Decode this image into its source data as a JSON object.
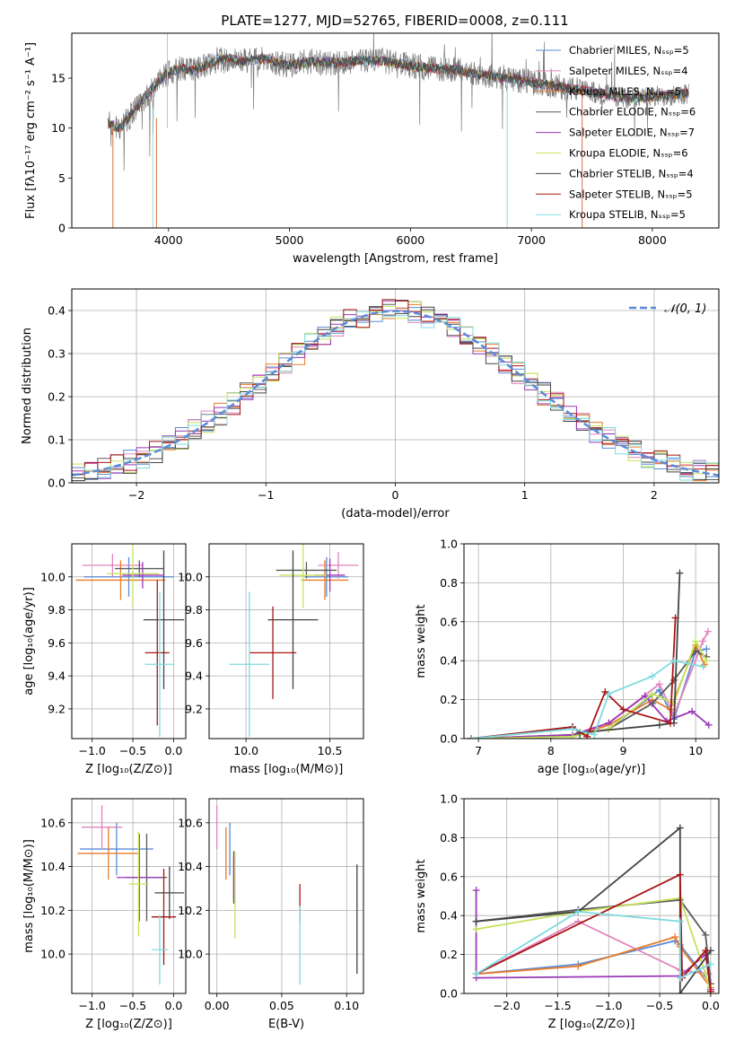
{
  "colors": [
    "#5b8bd6",
    "#e283bd",
    "#e87d2a",
    "#5a5a5a",
    "#9a38b8",
    "#c4e35a",
    "#444444",
    "#a81515",
    "#7fdbe0"
  ],
  "chart_data": [
    {
      "id": "spectrum",
      "type": "line",
      "title": "PLATE=1277, MJD=52765, FIBERID=0008, z=0.111",
      "xlabel": "wavelength [Angstrom, rest frame]",
      "ylabel": "Flux [fλ10⁻¹⁷ erg cm⁻² s⁻¹ A⁻¹]",
      "xlim": [
        3200,
        8550
      ],
      "ylim": [
        0,
        19.5
      ],
      "xticks": [
        4000,
        5000,
        6000,
        7000,
        8000
      ],
      "yticks": [
        0,
        5,
        10,
        15
      ],
      "legend_position": "top-right",
      "grid": false,
      "legend": [
        "Chabrier MILES, Nₛₛₚ=5",
        "Salpeter MILES, Nₛₛₚ=4",
        "Kroupa MILES, Nₛₛₚ=5",
        "Chabrier ELODIE, Nₛₛₚ=6",
        "Salpeter ELODIE, Nₛₛₚ=7",
        "Kroupa ELODIE, Nₛₛₚ=6",
        "Chabrier STELIB, Nₛₛₚ=4",
        "Salpeter STELIB, Nₛₛₚ=5",
        "Kroupa STELIB, Nₛₛₚ=5"
      ],
      "continuum": {
        "x": [
          3500,
          3600,
          3700,
          3800,
          3900,
          4000,
          4100,
          4200,
          4300,
          4400,
          4500,
          4600,
          4700,
          4800,
          4900,
          5000,
          5200,
          5400,
          5600,
          5800,
          6000,
          6200,
          6400,
          6600,
          6800,
          7000,
          7200,
          7400,
          7600,
          7800,
          8000,
          8200,
          8300
        ],
        "y": [
          10.5,
          10.0,
          11.5,
          13.0,
          14.5,
          15.5,
          16.0,
          15.8,
          16.2,
          16.8,
          17.0,
          16.6,
          16.8,
          17.0,
          16.5,
          16.3,
          16.7,
          16.5,
          16.8,
          16.7,
          16.2,
          16.0,
          15.8,
          15.3,
          15.0,
          14.6,
          14.2,
          13.8,
          13.4,
          13.0,
          13.1,
          13.4,
          13.5
        ]
      }
    },
    {
      "id": "residuals",
      "type": "histogram",
      "xlabel": "(data-model)/error",
      "ylabel": "Normed distribution",
      "xlim": [
        -2.5,
        2.5
      ],
      "ylim": [
        0,
        0.45
      ],
      "xticks": [
        -2,
        -1,
        0,
        1,
        2
      ],
      "yticks": [
        0.0,
        0.1,
        0.2,
        0.3,
        0.4
      ],
      "grid": true,
      "legend": [
        "𝒩(0, 1)"
      ],
      "legend_position": "top-right",
      "bin_width": 0.1
    },
    {
      "id": "age-vs-Z",
      "type": "scatter",
      "xlabel": "Z [log₁₀(Z/Z⊙)]",
      "ylabel": "age  [log₁₀(age/yr)]",
      "xlim": [
        -1.25,
        0.15
      ],
      "ylim": [
        9.02,
        10.2
      ],
      "xticks": [
        -1.0,
        -0.5,
        0.0
      ],
      "yticks": [
        9.2,
        9.4,
        9.6,
        9.8,
        10.0
      ],
      "grid": true,
      "points": [
        {
          "x": -0.55,
          "y": 10.0,
          "xerr": 0.55,
          "yerr": 0.12
        },
        {
          "x": -0.75,
          "y": 10.07,
          "xerr": 0.37,
          "yerr": 0.07
        },
        {
          "x": -0.65,
          "y": 9.98,
          "xerr": 0.55,
          "yerr": 0.12
        },
        {
          "x": -0.42,
          "y": 10.05,
          "xerr": 0.3,
          "yerr": 0.05
        },
        {
          "x": -0.38,
          "y": 10.01,
          "xerr": 0.25,
          "yerr": 0.08
        },
        {
          "x": -0.5,
          "y": 10.02,
          "xerr": 0.32,
          "yerr": 0.2
        },
        {
          "x": -0.12,
          "y": 9.74,
          "xerr": 0.25,
          "yerr": 0.42
        },
        {
          "x": -0.2,
          "y": 9.54,
          "xerr": 0.15,
          "yerr": 0.44
        },
        {
          "x": -0.17,
          "y": 9.47,
          "xerr": 0.18,
          "yerr": 0.44
        }
      ]
    },
    {
      "id": "age-vs-mass",
      "type": "scatter",
      "xlabel": "mass [log₁₀(M/M⊙)]",
      "ylabel": "",
      "xlim": [
        9.78,
        10.7
      ],
      "ylim": [
        9.02,
        10.2
      ],
      "xticks": [
        10.0,
        10.5
      ],
      "yticks": [
        9.2,
        9.4,
        9.6,
        9.8,
        10.0
      ],
      "grid": true,
      "points": [
        {
          "x": 10.48,
          "y": 10.0,
          "xerr": 0.13,
          "yerr": 0.12
        },
        {
          "x": 10.55,
          "y": 10.07,
          "xerr": 0.12,
          "yerr": 0.08
        },
        {
          "x": 10.47,
          "y": 9.98,
          "xerr": 0.14,
          "yerr": 0.12
        },
        {
          "x": 10.36,
          "y": 10.04,
          "xerr": 0.18,
          "yerr": 0.05
        },
        {
          "x": 10.5,
          "y": 10.01,
          "xerr": 0.09,
          "yerr": 0.1
        },
        {
          "x": 10.34,
          "y": 10.01,
          "xerr": 0.14,
          "yerr": 0.2
        },
        {
          "x": 10.28,
          "y": 9.74,
          "xerr": 0.15,
          "yerr": 0.42
        },
        {
          "x": 10.16,
          "y": 9.54,
          "xerr": 0.14,
          "yerr": 0.28
        },
        {
          "x": 10.02,
          "y": 9.47,
          "xerr": 0.12,
          "yerr": 0.44
        }
      ]
    },
    {
      "id": "massweight-vs-age",
      "type": "line",
      "xlabel": "age  [log₁₀(age/yr)]",
      "ylabel": "mass weight",
      "xlim": [
        6.8,
        10.32
      ],
      "ylim": [
        0,
        1.0
      ],
      "xticks": [
        7,
        8,
        9,
        10
      ],
      "yticks": [
        0.0,
        0.2,
        0.4,
        0.6,
        0.8,
        1.0
      ],
      "grid": true,
      "series": [
        {
          "x": [
            6.9,
            8.3,
            8.8,
            9.5,
            9.7,
            10.0,
            10.15
          ],
          "y": [
            0.0,
            0.01,
            0.05,
            0.25,
            0.1,
            0.45,
            0.46
          ]
        },
        {
          "x": [
            6.9,
            8.3,
            8.8,
            9.5,
            9.7,
            10.1,
            10.17
          ],
          "y": [
            0.0,
            0.01,
            0.08,
            0.28,
            0.12,
            0.5,
            0.55
          ]
        },
        {
          "x": [
            6.9,
            8.4,
            8.8,
            9.4,
            9.65,
            10.0,
            10.12
          ],
          "y": [
            0.0,
            0.02,
            0.07,
            0.2,
            0.15,
            0.48,
            0.38
          ]
        },
        {
          "x": [
            6.9,
            8.4,
            8.8,
            9.4,
            9.7,
            10.0,
            10.15
          ],
          "y": [
            0.0,
            0.02,
            0.05,
            0.18,
            0.3,
            0.45,
            0.42
          ]
        },
        {
          "x": [
            6.9,
            8.3,
            8.8,
            9.3,
            9.6,
            9.95,
            10.18
          ],
          "y": [
            0.0,
            0.02,
            0.08,
            0.22,
            0.09,
            0.14,
            0.07
          ]
        },
        {
          "x": [
            6.9,
            8.3,
            8.8,
            9.4,
            9.7,
            10.0,
            10.15
          ],
          "y": [
            0.0,
            0.01,
            0.05,
            0.23,
            0.18,
            0.5,
            0.4
          ]
        },
        {
          "x": [
            6.9,
            8.3,
            8.4,
            9.5,
            9.7,
            9.78
          ],
          "y": [
            0.0,
            0.06,
            0.03,
            0.07,
            0.08,
            0.85
          ]
        },
        {
          "x": [
            6.9,
            8.3,
            8.5,
            8.75,
            9.0,
            9.65,
            9.72
          ],
          "y": [
            0.0,
            0.06,
            0.01,
            0.24,
            0.15,
            0.08,
            0.62
          ]
        },
        {
          "x": [
            6.9,
            8.3,
            8.6,
            8.8,
            9.4,
            9.7,
            10.1
          ],
          "y": [
            0.0,
            0.05,
            0.02,
            0.23,
            0.32,
            0.4,
            0.37
          ]
        }
      ]
    },
    {
      "id": "mass-vs-Z",
      "type": "scatter",
      "xlabel": "Z [log₁₀(Z/Z⊙)]",
      "ylabel": "mass [log₁₀(M/M⊙)]",
      "xlim": [
        -1.25,
        0.15
      ],
      "ylim": [
        9.82,
        10.71
      ],
      "xticks": [
        -1.0,
        -0.5,
        0.0
      ],
      "yticks": [
        10.0,
        10.2,
        10.4,
        10.6
      ],
      "grid": true,
      "points": [
        {
          "x": -0.7,
          "y": 10.48,
          "xerr": 0.45,
          "yerr": 0.12
        },
        {
          "x": -0.88,
          "y": 10.58,
          "xerr": 0.25,
          "yerr": 0.1
        },
        {
          "x": -0.8,
          "y": 10.46,
          "xerr": 0.38,
          "yerr": 0.12
        },
        {
          "x": -0.33,
          "y": 10.35,
          "xerr": 0.25,
          "yerr": 0.2
        },
        {
          "x": -0.42,
          "y": 10.35,
          "xerr": 0.28,
          "yerr": 0.2
        },
        {
          "x": -0.43,
          "y": 10.32,
          "xerr": 0.12,
          "yerr": 0.24
        },
        {
          "x": -0.05,
          "y": 10.28,
          "xerr": 0.18,
          "yerr": 0.12
        },
        {
          "x": -0.12,
          "y": 10.17,
          "xerr": 0.15,
          "yerr": 0.22
        },
        {
          "x": -0.17,
          "y": 10.02,
          "xerr": 0.1,
          "yerr": 0.16
        }
      ]
    },
    {
      "id": "mass-vs-EBV",
      "type": "scatter",
      "xlabel": "E(B-V)",
      "ylabel": "",
      "xlim": [
        -0.006,
        0.113
      ],
      "ylim": [
        9.82,
        10.71
      ],
      "xticks": [
        0.0,
        0.05,
        0.1
      ],
      "yticks": [
        10.0,
        10.2,
        10.4,
        10.6
      ],
      "grid": true,
      "points": [
        {
          "x": 0.01,
          "y": 10.48,
          "xerr": 0.0,
          "yerr": 0.12
        },
        {
          "x": 0.0,
          "y": 10.58,
          "xerr": 0.0,
          "yerr": 0.1
        },
        {
          "x": 0.007,
          "y": 10.46,
          "xerr": 0.0,
          "yerr": 0.12
        },
        {
          "x": 0.013,
          "y": 10.35,
          "xerr": 0.0,
          "yerr": 0.12
        },
        {
          "x": 0.013,
          "y": 10.35,
          "xerr": 0.0,
          "yerr": 0.1
        },
        {
          "x": 0.014,
          "y": 10.27,
          "xerr": 0.0,
          "yerr": 0.2
        },
        {
          "x": 0.108,
          "y": 10.16,
          "xerr": 0.0,
          "yerr": 0.25
        },
        {
          "x": 0.064,
          "y": 10.23,
          "xerr": 0.0,
          "yerr": 0.09
        },
        {
          "x": 0.064,
          "y": 10.04,
          "xerr": 0.0,
          "yerr": 0.18
        }
      ]
    },
    {
      "id": "massweight-vs-Z",
      "type": "line",
      "xlabel": "Z [log₁₀(Z/Z⊙)]",
      "ylabel": "mass weight",
      "xlim": [
        -2.42,
        0.08
      ],
      "ylim": [
        0,
        1.0
      ],
      "xticks": [
        -2.0,
        -1.5,
        -1.0,
        -0.5,
        0.0
      ],
      "yticks": [
        0.0,
        0.2,
        0.4,
        0.6,
        0.8,
        1.0
      ],
      "grid": true,
      "series": [
        {
          "x": [
            -2.3,
            -1.3,
            -0.35,
            -0.3,
            0.0
          ],
          "y": [
            0.1,
            0.15,
            0.27,
            0.25,
            0.05
          ]
        },
        {
          "x": [
            -2.3,
            -1.3,
            -0.3,
            -0.02,
            0.0
          ],
          "y": [
            0.1,
            0.37,
            0.12,
            0.1,
            0.02
          ]
        },
        {
          "x": [
            -2.3,
            -1.3,
            -0.35,
            -0.3,
            0.0
          ],
          "y": [
            0.1,
            0.14,
            0.29,
            0.24,
            0.03
          ]
        },
        {
          "x": [
            -2.3,
            -1.3,
            -0.3,
            -0.05,
            0.0
          ],
          "y": [
            0.37,
            0.43,
            0.48,
            0.3,
            0.05
          ]
        },
        {
          "x": [
            -2.3,
            -2.3,
            -0.3,
            -0.05,
            0.0
          ],
          "y": [
            0.53,
            0.08,
            0.09,
            0.2,
            0.02
          ]
        },
        {
          "x": [
            -2.3,
            -1.3,
            -0.3,
            -0.05,
            0.0
          ],
          "y": [
            0.33,
            0.42,
            0.49,
            0.1,
            0.0
          ]
        },
        {
          "x": [
            -2.3,
            -1.3,
            -0.3,
            -0.3,
            0.0
          ],
          "y": [
            0.37,
            0.42,
            0.85,
            0.0,
            0.22
          ]
        },
        {
          "x": [
            -2.3,
            -0.3,
            -0.28,
            -0.05,
            0.0
          ],
          "y": [
            0.1,
            0.61,
            0.08,
            0.22,
            0.01
          ]
        },
        {
          "x": [
            -2.3,
            -1.3,
            -0.3,
            -0.3,
            0.0
          ],
          "y": [
            0.1,
            0.42,
            0.37,
            0.08,
            0.15
          ]
        }
      ]
    }
  ]
}
